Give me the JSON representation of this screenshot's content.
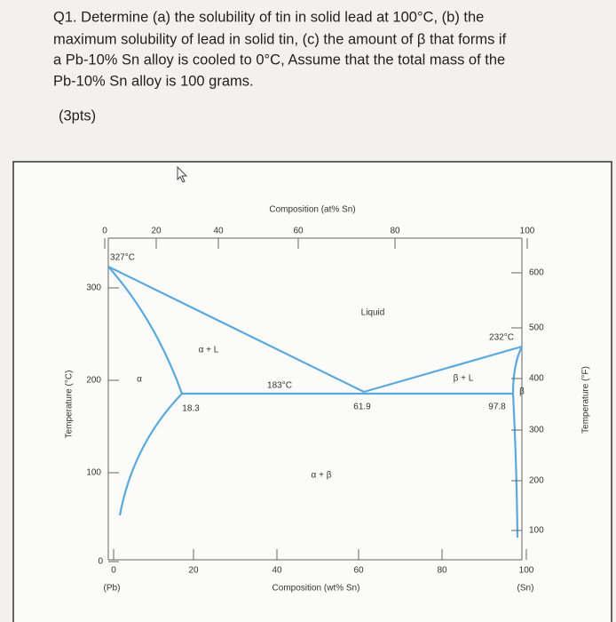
{
  "question": {
    "lines": [
      "Q1. Determine (a) the solubility of tin in solid lead at 100°C, (b) the",
      "maximum solubility of lead in solid tin, (c) the amount of β that forms if",
      "a Pb-10% Sn alloy is cooled to 0°C, Assume that the total mass of the",
      "Pb-10% Sn alloy is 100 grams."
    ],
    "points": "(3pts)"
  },
  "figure": {
    "top_axis": {
      "title": "Composition (at% Sn)",
      "ticks": [
        "0",
        "20",
        "40",
        "60",
        "80",
        "100"
      ]
    },
    "bottom_axis": {
      "title": "Composition (wt% Sn)",
      "ticks": [
        "0",
        "20",
        "40",
        "60",
        "80",
        "100"
      ],
      "left_end": "(Pb)",
      "right_end": "(Sn)"
    },
    "left_axis": {
      "title": "Temperature (°C)",
      "ticks": [
        "300",
        "200",
        "100",
        "0"
      ]
    },
    "right_axis": {
      "title": "Temperature (°F)",
      "ticks": [
        "600",
        "500",
        "400",
        "300",
        "200",
        "100"
      ]
    },
    "labels": [
      "327°C",
      "Liquid",
      "232°C",
      "α + L",
      "α",
      "183°C",
      "β + L",
      "β",
      "18.3",
      "61.9",
      "97.8",
      "α + β"
    ]
  }
}
